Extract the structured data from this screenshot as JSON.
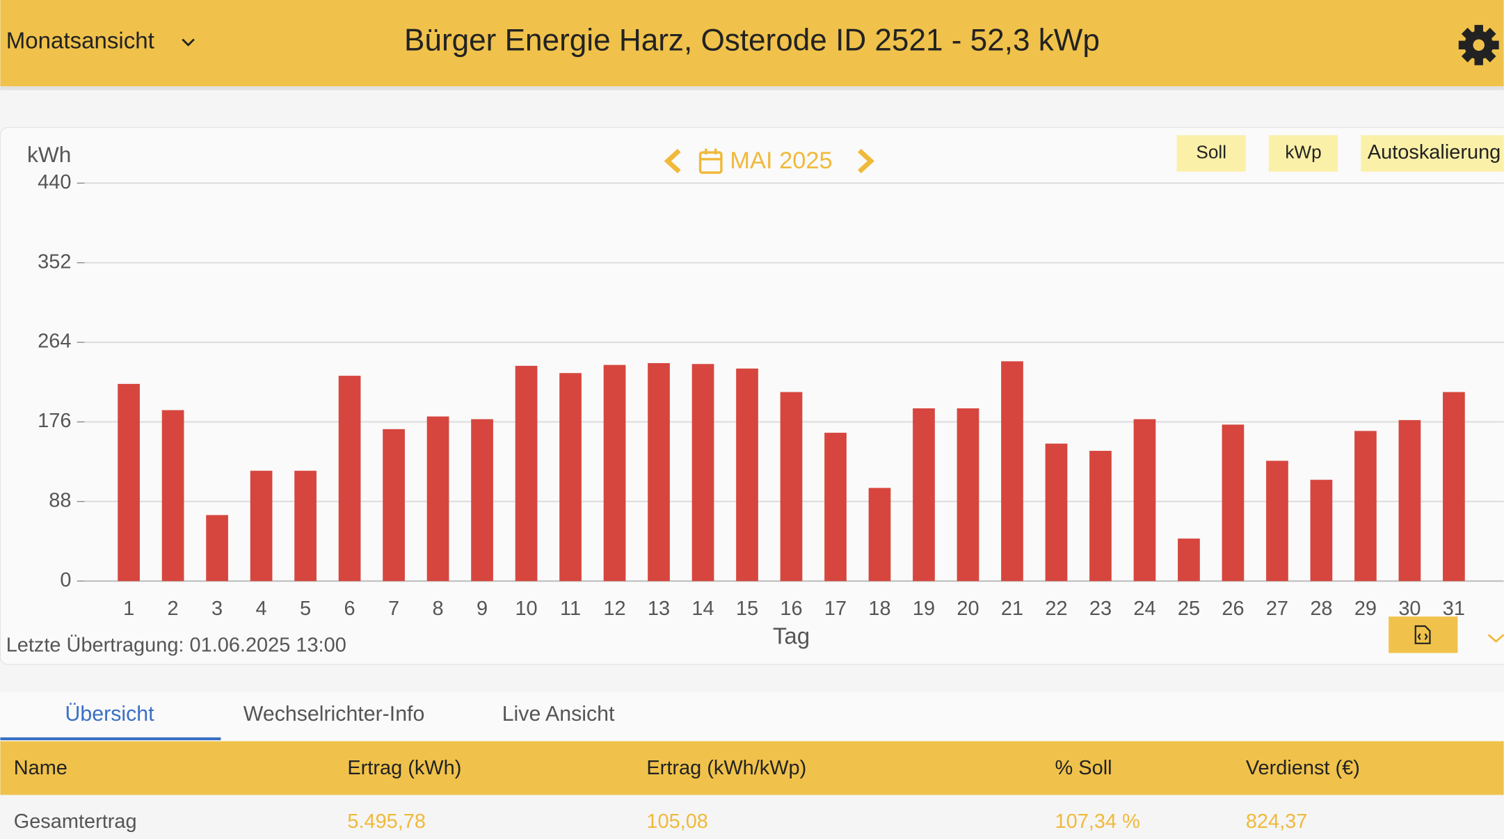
{
  "header": {
    "view_selector": "Monatsansicht",
    "title": "Bürger Energie Harz, Osterode ID 2521 - 52,3 kWp"
  },
  "chart_data": {
    "type": "bar",
    "period": "MAI 2025",
    "y_label": "kWh",
    "x_label": "Tag",
    "buttons": [
      "Soll",
      "kWp",
      "Autoskalierung"
    ],
    "categories": [
      "1",
      "2",
      "3",
      "4",
      "5",
      "6",
      "7",
      "8",
      "9",
      "10",
      "11",
      "12",
      "13",
      "14",
      "15",
      "16",
      "17",
      "18",
      "19",
      "20",
      "21",
      "22",
      "23",
      "24",
      "25",
      "26",
      "27",
      "28",
      "29",
      "30",
      "31"
    ],
    "values": [
      218,
      189,
      73,
      122,
      122,
      227,
      168,
      182,
      179,
      238,
      230,
      239,
      241,
      240,
      235,
      209,
      164,
      103,
      191,
      191,
      243,
      152,
      144,
      179,
      47,
      173,
      133,
      112,
      166,
      178,
      209
    ],
    "color": "#d6463e",
    "ylim": [
      0,
      440
    ],
    "yticks": [
      0,
      88,
      176,
      264,
      352,
      440
    ],
    "grid": true,
    "footer_note": "Letzte Übertragung: 01.06.2025 13:00"
  },
  "tabs": [
    "Übersicht",
    "Wechselrichter-Info",
    "Live Ansicht"
  ],
  "table": {
    "columns": [
      "Name",
      "Ertrag (kWh)",
      "Ertrag (kWh/kWp)",
      "% Soll",
      "Verdienst (€)"
    ],
    "rows": [
      [
        "Gesamtertrag",
        "5.495,78",
        "105,08",
        "107,34 %",
        "824,37"
      ]
    ]
  }
}
